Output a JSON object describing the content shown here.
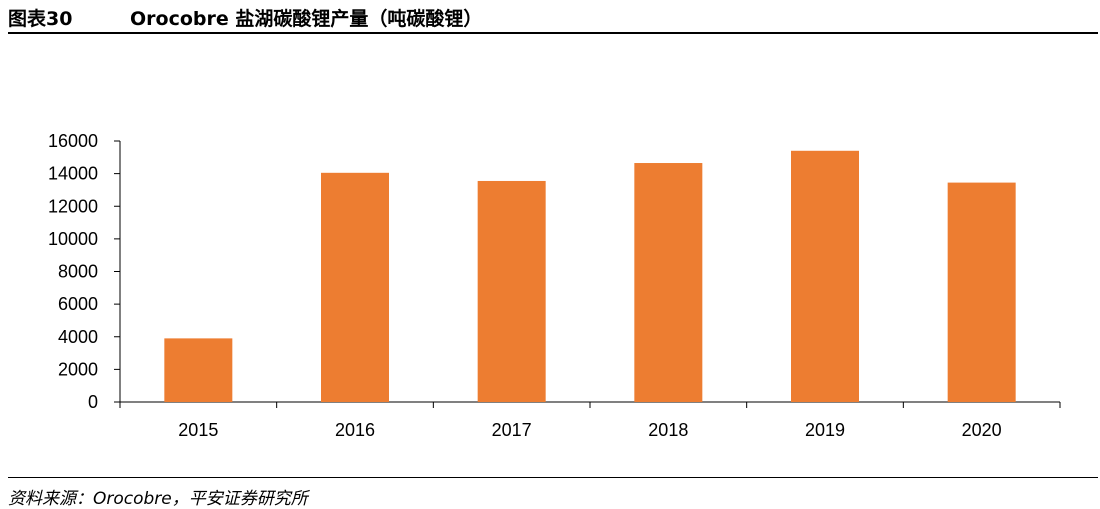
{
  "header": {
    "figure_label": "图表30",
    "title": "Orocobre 盐湖碳酸锂产量（吨碳酸锂）"
  },
  "footer": {
    "source": "资料来源：Orocobre，平安证券研究所"
  },
  "chart_data": {
    "type": "bar",
    "title": "Orocobre 盐湖碳酸锂产量（吨碳酸锂）",
    "xlabel": "",
    "ylabel": "",
    "categories": [
      "2015",
      "2016",
      "2017",
      "2018",
      "2019",
      "2020"
    ],
    "series": [
      {
        "values": [
          3900,
          14050,
          13550,
          14650,
          15400,
          13450
        ]
      }
    ],
    "ylim": [
      0,
      16000
    ],
    "yticks": [
      "0",
      "2000",
      "4000",
      "6000",
      "8000",
      "10000",
      "12000",
      "14000",
      "16000"
    ],
    "grid": false,
    "legend": "none",
    "bar_color": "#ED7D31"
  }
}
